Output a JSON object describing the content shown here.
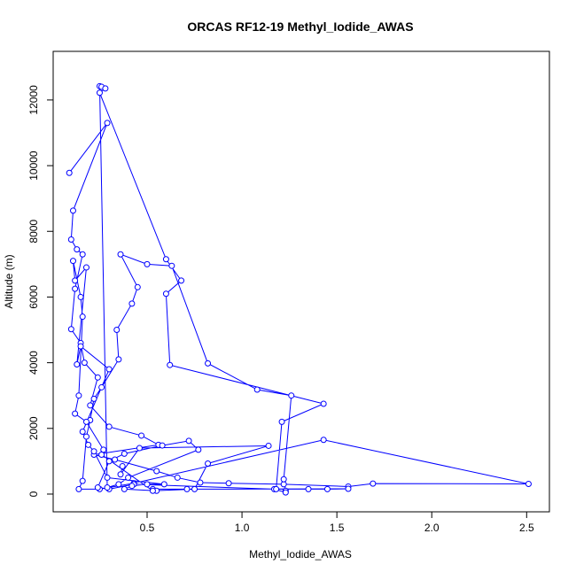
{
  "chart_data": {
    "type": "line",
    "title": "ORCAS RF12-19 Methyl_Iodide_AWAS",
    "x_label": "Methyl_Iodide_AWAS",
    "y_label": "Altitude (m)",
    "color": "#0000ff",
    "markers": true,
    "xlim": [
      0.005,
      2.62
    ],
    "ylim": [
      -540,
      13480
    ],
    "xticks": [
      0.5,
      {
        "value": 1,
        "label": "1.0"
      },
      1.5,
      {
        "value": 2,
        "label": "2.0"
      },
      2.5
    ],
    "yticks": [
      0,
      2000,
      4000,
      6000,
      8000,
      10000,
      12000
    ],
    "x": [
      0.09,
      0.29,
      0.11,
      0.1,
      0.13,
      0.16,
      0.12,
      0.1,
      0.15,
      0.17,
      0.24,
      0.2,
      0.3,
      0.47,
      0.56,
      0.22,
      0.33,
      0.55,
      0.66,
      0.78,
      0.93,
      1.22,
      1.56,
      1.69,
      2.51,
      1.43,
      0.43,
      0.25,
      0.14,
      0.16,
      0.18,
      0.2,
      0.22,
      0.26,
      0.35,
      0.34,
      0.42,
      0.45,
      0.36,
      0.5,
      0.63,
      0.82,
      1.08,
      1.26,
      1.22,
      1.23,
      1.23,
      1.17,
      0.43,
      0.3,
      0.24,
      0.3,
      0.38,
      0.58,
      0.72,
      0.77,
      0.4,
      0.35,
      0.29,
      0.25,
      0.26,
      0.28,
      0.25,
      0.6,
      0.68,
      0.6,
      0.62,
      1.43,
      1.21,
      1.18,
      1.35,
      1.45,
      1.56,
      0.71,
      0.53,
      0.55,
      0.38,
      0.42,
      0.5,
      0.59,
      0.29,
      0.22,
      0.19,
      0.16,
      0.3,
      0.15,
      0.13,
      0.18,
      0.12,
      0.11,
      0.15,
      0.16,
      0.14,
      0.12,
      0.18,
      0.27,
      0.26,
      0.53,
      0.75,
      0.82,
      1.14,
      0.46,
      0.36,
      0.37
    ],
    "y": [
      9780,
      11300,
      8630,
      7750,
      7450,
      7300,
      6250,
      5020,
      4600,
      4000,
      3550,
      2700,
      2050,
      1780,
      1500,
      1200,
      1050,
      700,
      500,
      350,
      330,
      300,
      230,
      320,
      310,
      1650,
      330,
      150,
      150,
      400,
      1750,
      2250,
      2900,
      3250,
      4100,
      5000,
      5800,
      6300,
      7300,
      7000,
      6950,
      3980,
      3180,
      3000,
      450,
      100,
      50,
      150,
      300,
      150,
      200,
      1000,
      1230,
      1480,
      1620,
      1350,
      500,
      300,
      200,
      12420,
      12400,
      12350,
      12220,
      7150,
      6500,
      6100,
      3930,
      2750,
      2200,
      150,
      150,
      150,
      160,
      150,
      150,
      100,
      150,
      250,
      300,
      300,
      500,
      1300,
      1500,
      1900,
      3800,
      4500,
      3950,
      6900,
      6500,
      7100,
      6000,
      5400,
      3000,
      2450,
      2200,
      1350,
      1200,
      100,
      150,
      930,
      1470,
      1400,
      600,
      850
    ]
  }
}
